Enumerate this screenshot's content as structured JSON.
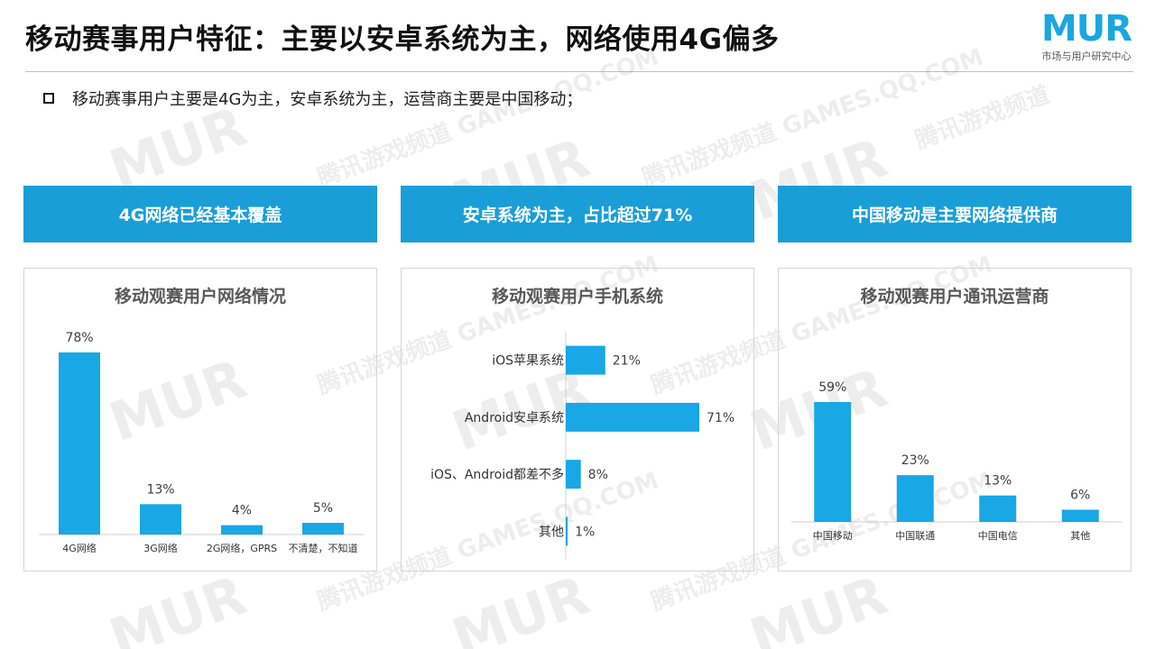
{
  "header": {
    "title": "移动赛事用户特征：主要以安卓系统为主，网络使用4G偏多",
    "logo": {
      "text": "MUR",
      "subtitle": "市场与用户研究中心"
    }
  },
  "bullet": {
    "text": "移动赛事用户主要是4G为主，安卓系统为主，运营商主要是中国移动；"
  },
  "banners": [
    {
      "label": "4G网络已经基本覆盖"
    },
    {
      "label": "安卓系统为主，占比超过71%"
    },
    {
      "label": "中国移动是主要网络提供商"
    }
  ],
  "watermark": {
    "text1": "腾讯游戏频道",
    "text2": "GAMES.QQ.COM",
    "text3": "MUR",
    "text4": "市场与用户研究中心"
  },
  "colors": {
    "accent": "#199ed8",
    "bar": "#19a7e6"
  },
  "chart_data": [
    {
      "type": "bar",
      "title": "移动观赛用户网络情况",
      "categories": [
        "4G网络",
        "3G网络",
        "2G网络，GPRS",
        "不清楚，不知道"
      ],
      "values": [
        78,
        13,
        4,
        5
      ],
      "value_labels": [
        "78%",
        "13%",
        "4%",
        "5%"
      ],
      "ylim": [
        0,
        78
      ]
    },
    {
      "type": "bar",
      "orientation": "horizontal",
      "title": "移动观赛用户手机系统",
      "categories": [
        "iOS苹果系统",
        "Android安卓系统",
        "iOS、Android都差不多",
        "其他"
      ],
      "values": [
        21,
        71,
        8,
        1
      ],
      "value_labels": [
        "21%",
        "71%",
        "8%",
        "1%"
      ],
      "xlim": [
        0,
        71
      ]
    },
    {
      "type": "bar",
      "title": "移动观赛用户通讯运营商",
      "categories": [
        "中国移动",
        "中国联通",
        "中国电信",
        "其他"
      ],
      "values": [
        59,
        23,
        13,
        6
      ],
      "value_labels": [
        "59%",
        "23%",
        "13%",
        "6%"
      ],
      "ylim": [
        0,
        59
      ]
    }
  ]
}
